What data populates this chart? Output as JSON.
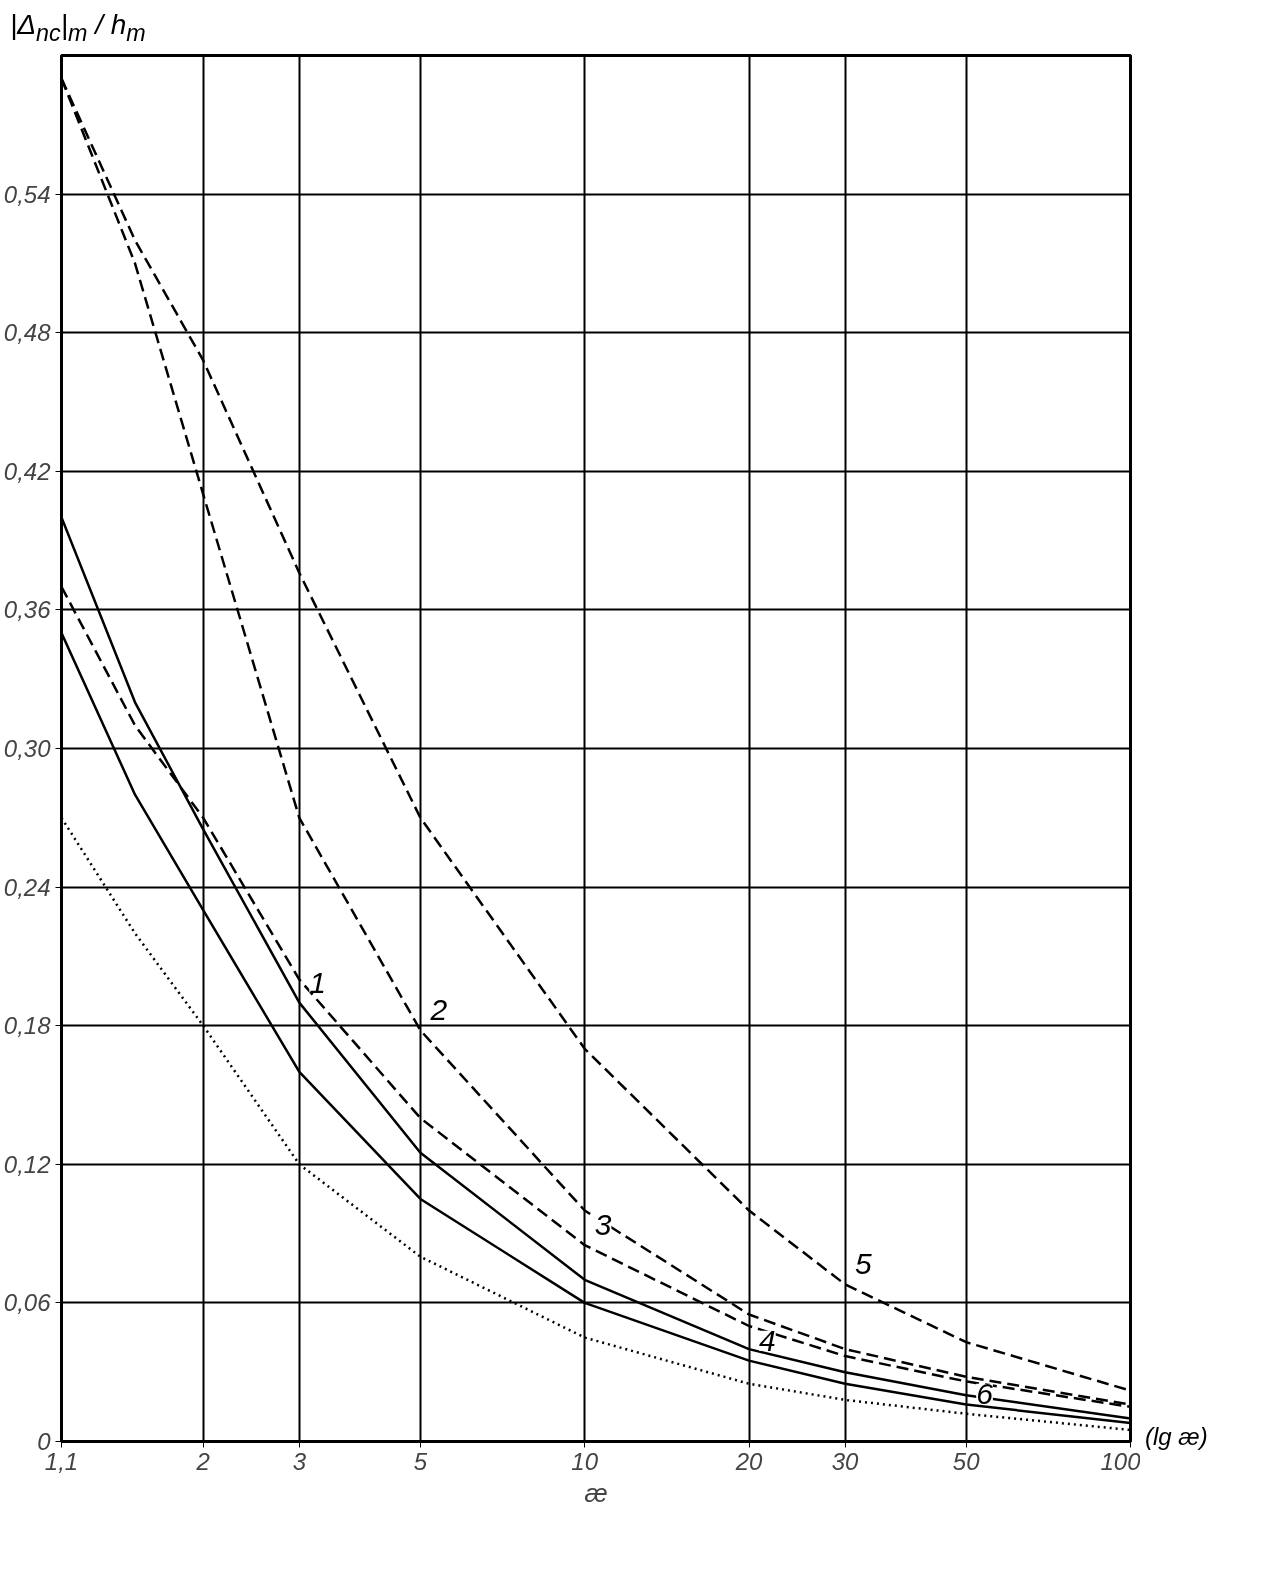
{
  "chart_data": {
    "type": "line",
    "xlabel": "æ",
    "ylabel": "|Δ$_{nc}$|$_{m}$ / h$_{m}$",
    "annotations": [
      "(lg æ)"
    ],
    "log": "x",
    "grid": true,
    "legend": false,
    "xlim": [
      1.1,
      100
    ],
    "ylim": [
      0,
      0.6
    ],
    "xticks": [
      {
        "value": 1.1,
        "label": "1,1"
      },
      2,
      3,
      5,
      10,
      20,
      30,
      50,
      100
    ],
    "yticks": [
      0,
      {
        "value": 0.06,
        "label": "0,06"
      },
      {
        "value": 0.12,
        "label": "0,12"
      },
      {
        "value": 0.18,
        "label": "0,18"
      },
      {
        "value": 0.24,
        "label": "0,24"
      },
      {
        "value": 0.3,
        "label": "0,30"
      },
      {
        "value": 0.36,
        "label": "0,36"
      },
      {
        "value": 0.42,
        "label": "0,42"
      },
      {
        "value": 0.48,
        "label": "0,48"
      },
      {
        "value": 0.54,
        "label": "0,54"
      }
    ],
    "x": [
      1.1,
      1.5,
      2,
      3,
      5,
      10,
      20,
      30,
      50,
      100
    ],
    "series": [
      {
        "name": "1",
        "color": "#000000",
        "line_style": "solid",
        "values": [
          0.4,
          0.32,
          0.265,
          0.19,
          0.125,
          0.07,
          0.04,
          0.03,
          0.02,
          0.01
        ]
      },
      {
        "name": "2",
        "color": "#000000",
        "line_style": "dashed",
        "values": [
          0.59,
          0.51,
          0.41,
          0.27,
          0.178,
          0.1,
          0.055,
          0.04,
          0.028,
          0.016
        ]
      },
      {
        "name": "3",
        "color": "#000000",
        "line_style": "dashed",
        "values": [
          0.37,
          0.31,
          0.27,
          0.2,
          0.14,
          0.085,
          0.05,
          0.037,
          0.026,
          0.015
        ]
      },
      {
        "name": "4",
        "color": "#000000",
        "line_style": "solid",
        "values": [
          0.35,
          0.28,
          0.23,
          0.16,
          0.105,
          0.06,
          0.035,
          0.025,
          0.016,
          0.008
        ]
      },
      {
        "name": "5",
        "color": "#000000",
        "line_style": "dashed",
        "values": [
          0.59,
          0.52,
          0.468,
          0.376,
          0.27,
          0.17,
          0.1,
          0.068,
          0.043,
          0.022
        ]
      },
      {
        "name": "6",
        "color": "#000000",
        "line_style": "dotted",
        "values": [
          0.27,
          0.22,
          0.18,
          0.12,
          0.08,
          0.045,
          0.025,
          0.018,
          0.012,
          0.005
        ]
      }
    ]
  }
}
